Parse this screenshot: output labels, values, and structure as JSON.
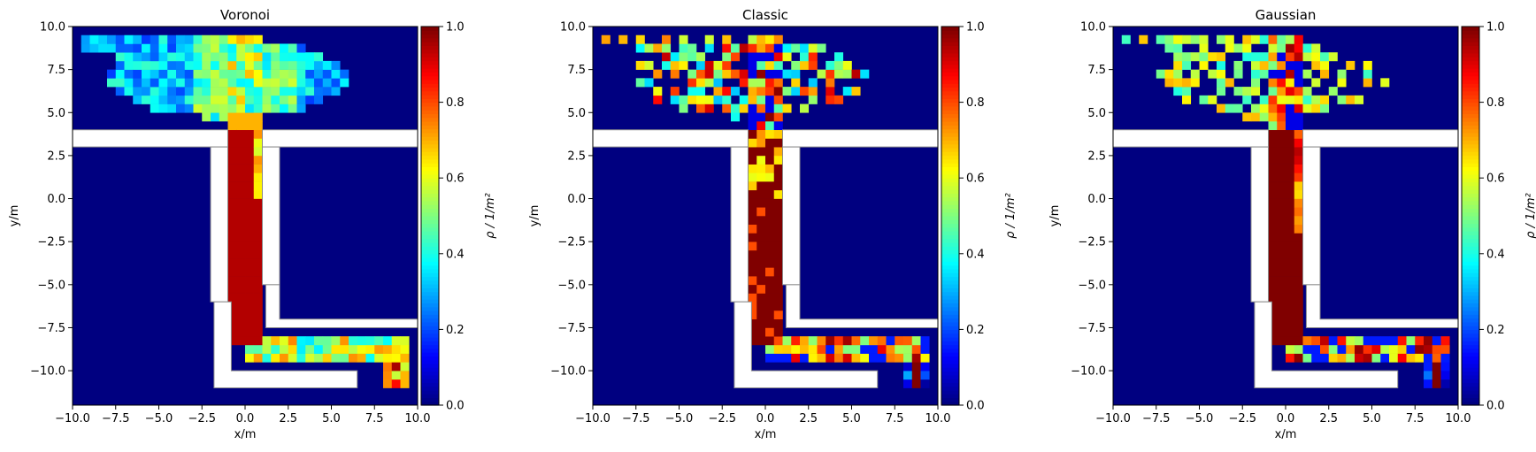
{
  "figure": {
    "panels": [
      "Voronoi",
      "Classic",
      "Gaussian"
    ]
  },
  "chart_data": [
    {
      "type": "heatmap",
      "title": "Voronoi",
      "xlabel": "x/m",
      "ylabel": "y/m",
      "xlim": [
        -10.0,
        10.0
      ],
      "ylim": [
        -12.0,
        10.0
      ],
      "xticks": [
        "−10.0",
        "−7.5",
        "−5.0",
        "−2.5",
        "0.0",
        "2.5",
        "5.0",
        "7.5",
        "10.0"
      ],
      "yticks": [
        "10.0",
        "7.5",
        "5.0",
        "2.5",
        "0.0",
        "−2.5",
        "−5.0",
        "−7.5",
        "−10.0"
      ],
      "colorbar": {
        "label": "ρ / 1/m²",
        "min": 0.0,
        "max": 1.0,
        "ticks": [
          "0.0",
          "0.2",
          "0.4",
          "0.6",
          "0.8",
          "1.0"
        ],
        "colormap": "jet"
      },
      "background_density": 0.0,
      "density_regions": [
        {
          "region": "upper room crowd (x -9..6, y 4.5..9.5)",
          "density": 0.35
        },
        {
          "region": "upper room near door (x -1..1, y 4..7.5)",
          "density": 0.55
        },
        {
          "region": "vertical corridor (x -0.8..0.9, y -8.5..4)",
          "density": 1.0
        },
        {
          "region": "lower corridor (x 0..9, y -9.5..-8)",
          "density": 0.5
        },
        {
          "region": "exit area (x 8..9.5, y -10.5..-9)",
          "density": 0.9
        }
      ]
    },
    {
      "type": "heatmap",
      "title": "Classic",
      "xlabel": "x/m",
      "ylabel": "y/m",
      "xlim": [
        -10.0,
        10.0
      ],
      "ylim": [
        -12.0,
        10.0
      ],
      "xticks": [
        "−10.0",
        "−7.5",
        "−5.0",
        "−2.5",
        "0.0",
        "2.5",
        "5.0",
        "7.5",
        "10.0"
      ],
      "yticks": [
        "10.0",
        "7.5",
        "5.0",
        "2.5",
        "0.0",
        "−2.5",
        "−5.0",
        "−7.5",
        "−10.0"
      ],
      "colorbar": {
        "label": "ρ / 1/m²",
        "min": 0.0,
        "max": 1.0,
        "ticks": [
          "0.0",
          "0.2",
          "0.4",
          "0.6",
          "0.8",
          "1.0"
        ],
        "colormap": "jet"
      },
      "background_density": 0.0,
      "density_regions": [
        {
          "region": "upper room sparse (x -9..6, y 4.5..9)",
          "density": 0.25
        },
        {
          "region": "vertical corridor (x -0.8..0.9, y -8.5..4)",
          "density": 0.95
        },
        {
          "region": "lower corridor (x 0..9, y -9.5..-8)",
          "density": 0.6
        },
        {
          "region": "exit area (x 8.5..9, y -11..-9.5)",
          "density": 1.0
        }
      ]
    },
    {
      "type": "heatmap",
      "title": "Gaussian",
      "xlabel": "x/m",
      "ylabel": "y/m",
      "xlim": [
        -10.0,
        10.0
      ],
      "ylim": [
        -12.0,
        10.0
      ],
      "xticks": [
        "−10.0",
        "−7.5",
        "−5.0",
        "−2.5",
        "0.0",
        "2.5",
        "5.0",
        "7.5",
        "10.0"
      ],
      "yticks": [
        "10.0",
        "7.5",
        "5.0",
        "2.5",
        "0.0",
        "−2.5",
        "−5.0",
        "−7.5",
        "−10.0"
      ],
      "colorbar": {
        "label": "ρ / 1/m²",
        "min": 0.0,
        "max": 1.0,
        "ticks": [
          "0.0",
          "0.2",
          "0.4",
          "0.6",
          "0.8",
          "1.0"
        ],
        "colormap": "jet"
      },
      "background_density": 0.0,
      "density_regions": [
        {
          "region": "upper room crowd (x -9..6, y 4.5..9)",
          "density": 0.3
        },
        {
          "region": "upper room near door (x -1..1, y 4..9)",
          "density": 0.6
        },
        {
          "region": "vertical corridor (x -0.8..0.9, y -8.5..4)",
          "density": 1.0
        },
        {
          "region": "lower corridor (x 0..9, y -9.5..-8)",
          "density": 0.6
        },
        {
          "region": "exit area (x 8.5..9.5, y -11..-9.5)",
          "density": 1.0
        }
      ]
    }
  ]
}
